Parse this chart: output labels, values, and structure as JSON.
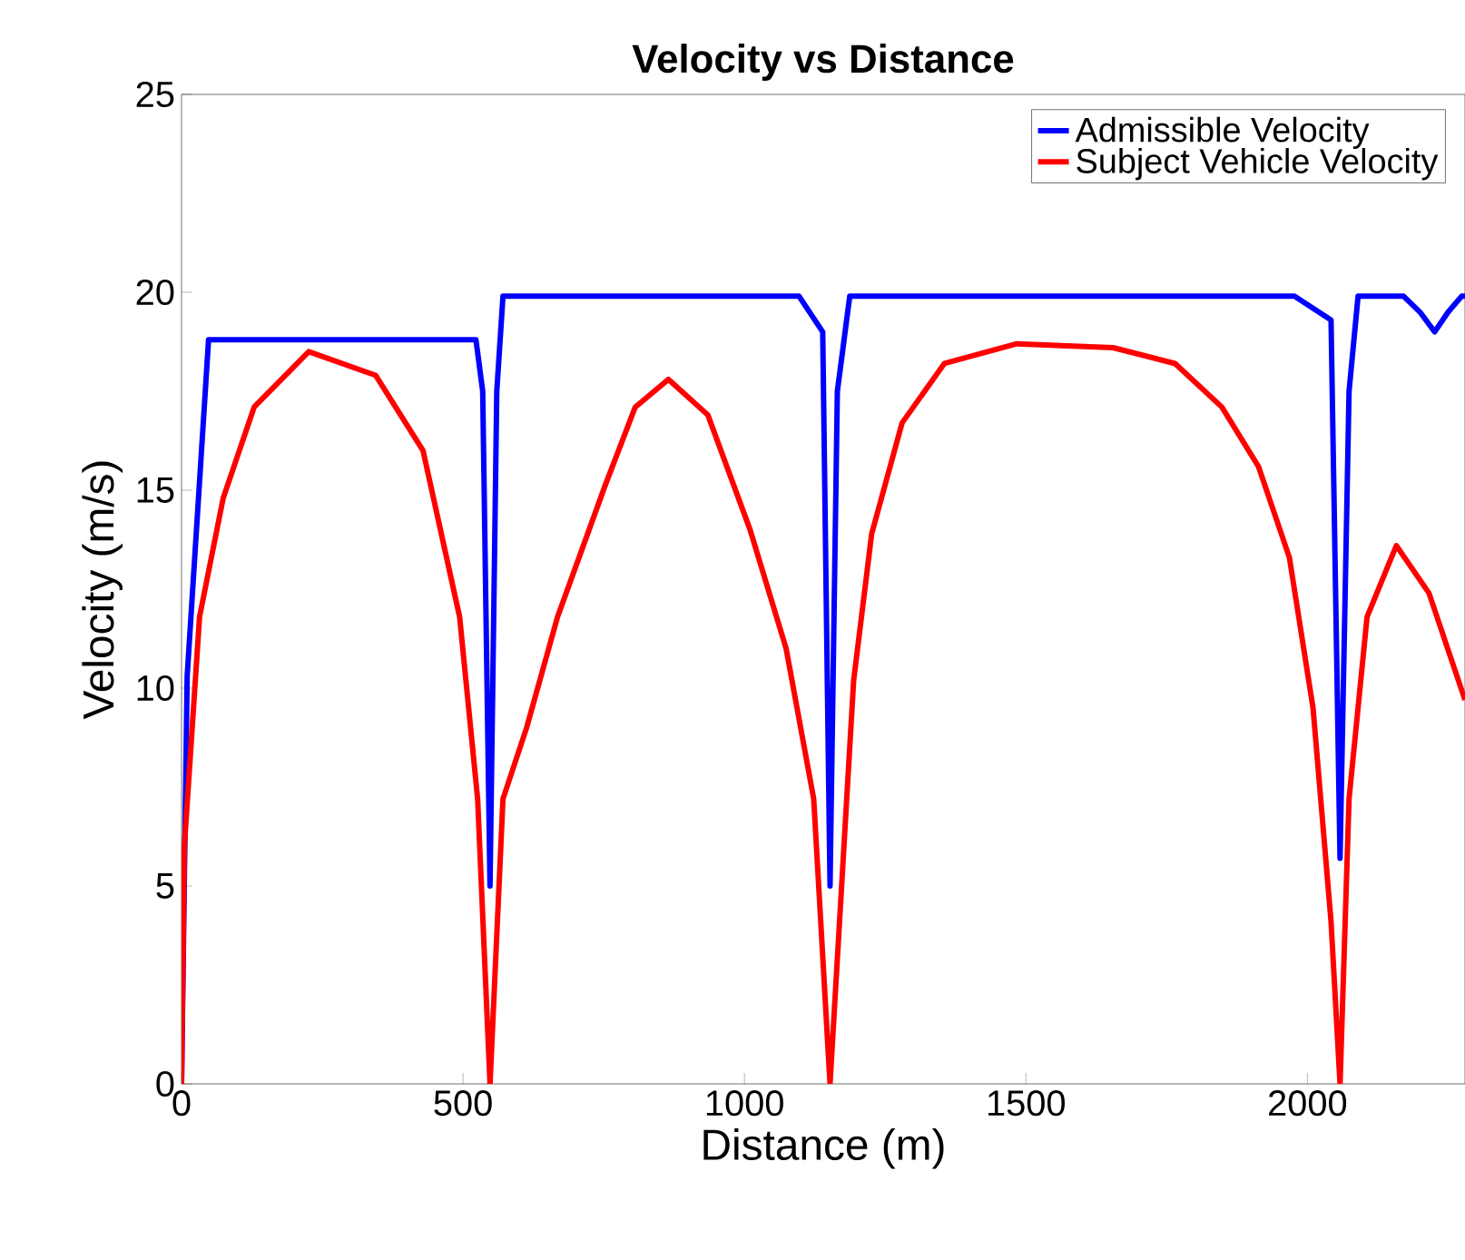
{
  "chart_data": {
    "type": "line",
    "title": "Velocity vs Distance",
    "xlabel": "Distance (m)",
    "ylabel": "Velocity (m/s)",
    "xlim": [
      0,
      2280
    ],
    "xticks": [
      0,
      500,
      1000,
      1500,
      2000
    ],
    "ylim": [
      0,
      25
    ],
    "yticks": [
      0,
      5,
      10,
      15,
      20,
      25
    ],
    "grid": false,
    "legend": "top right",
    "marker": "none",
    "line_style": "solid",
    "series": [
      {
        "name": "Admissible Velocity",
        "color": "#0000ff",
        "x": [
          0,
          10,
          48,
          523,
          535,
          548,
          560,
          571,
          1097,
          1139,
          1152,
          1165,
          1187,
          1977,
          2042,
          2058,
          2074,
          2090,
          2171,
          2200,
          2226,
          2250,
          2274,
          2280
        ],
        "values": [
          0,
          10.3,
          18.8,
          18.8,
          17.5,
          5,
          17.5,
          19.9,
          19.9,
          19.0,
          5,
          17.5,
          19.9,
          19.9,
          19.3,
          5.7,
          17.5,
          19.9,
          19.9,
          19.5,
          19.0,
          19.5,
          19.9,
          19.9
        ]
      },
      {
        "name": "Subject Vehicle Velocity",
        "color": "#ff0000",
        "x": [
          0,
          5,
          32,
          74,
          129,
          226,
          345,
          429,
          494,
          526,
          548,
          571,
          613,
          668,
          752,
          806,
          865,
          935,
          1010,
          1074,
          1123,
          1152,
          1194,
          1226,
          1280,
          1355,
          1484,
          1655,
          1765,
          1848,
          1913,
          1968,
          2010,
          2042,
          2058,
          2074,
          2106,
          2158,
          2216,
          2280
        ],
        "values": [
          0,
          6,
          11.8,
          14.8,
          17.1,
          18.5,
          17.9,
          16.0,
          11.8,
          7.2,
          0,
          7.2,
          9.0,
          11.8,
          15.1,
          17.1,
          17.8,
          16.9,
          14.0,
          11.0,
          7.2,
          0,
          10.2,
          13.9,
          16.7,
          18.2,
          18.7,
          18.6,
          18.2,
          17.1,
          15.6,
          13.3,
          9.5,
          4.1,
          0,
          7.2,
          11.8,
          13.6,
          12.4,
          9.7
        ]
      }
    ]
  }
}
